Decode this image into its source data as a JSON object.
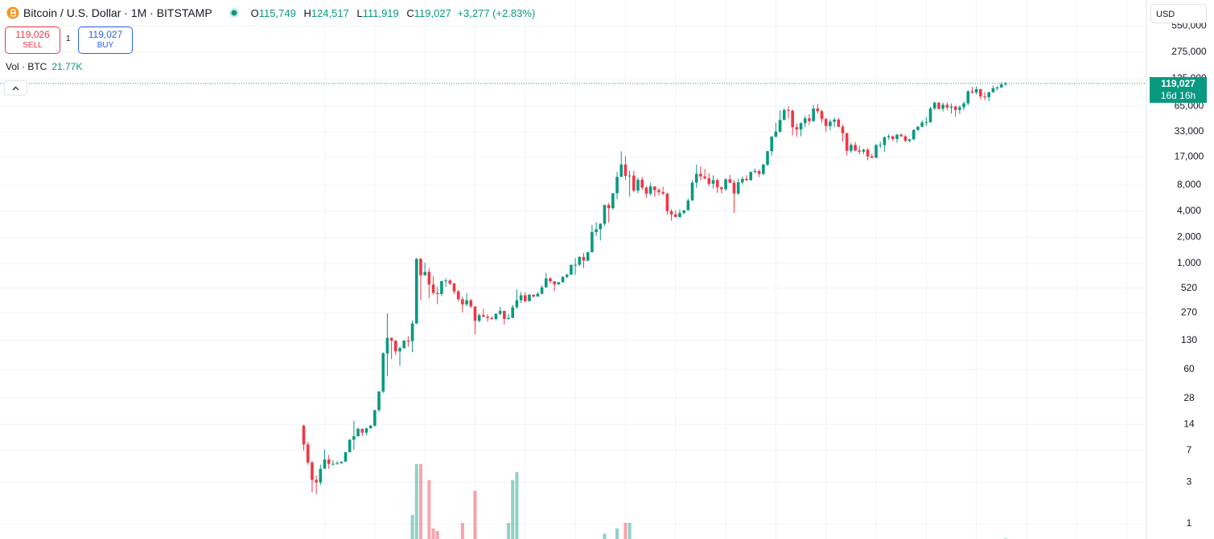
{
  "header": {
    "symbol": "Bitcoin / U.S. Dollar · 1M · BITSTAMP",
    "ohlc": [
      {
        "key": "O",
        "value": "115,749"
      },
      {
        "key": "H",
        "value": "124,517"
      },
      {
        "key": "L",
        "value": "111,919"
      },
      {
        "key": "C",
        "value": "119,027"
      }
    ],
    "change": "+3,277 (+2.83%)",
    "sell": {
      "price": "119,026",
      "label": "SELL"
    },
    "spread": "1",
    "buy": {
      "price": "119,027",
      "label": "BUY"
    },
    "volume": {
      "label": "Vol · BTC",
      "value": "21.77K"
    },
    "currency": "USD"
  },
  "chart_data": {
    "type": "candlestick",
    "log": true,
    "grid": true,
    "up_color": "#089981",
    "down_color": "#f23645",
    "ylim": [
      0.667,
      1090000
    ],
    "yticks": [
      {
        "value": 550000,
        "label": "550,000"
      },
      {
        "value": 275000,
        "label": "275,000"
      },
      {
        "value": 135000,
        "label": "135,000"
      },
      {
        "value": 65000,
        "label": "65,000"
      },
      {
        "value": 33000,
        "label": "33,000"
      },
      {
        "value": 17000,
        "label": "17,000"
      },
      {
        "value": 8000,
        "label": "8,000"
      },
      {
        "value": 4000,
        "label": "4,000"
      },
      {
        "value": 2000,
        "label": "2,000"
      },
      {
        "value": 1000,
        "label": "1,000"
      },
      520,
      270,
      130,
      60,
      28,
      14,
      7,
      3,
      1
    ],
    "last_price": {
      "value": 119027,
      "label": "119,027"
    },
    "countdown": "16d 16h",
    "candles": [
      [
        13.5,
        13.9,
        7.0,
        8.2
      ],
      [
        8.2,
        8.8,
        4.8,
        5.1
      ],
      [
        5.1,
        5.3,
        2.3,
        3.2
      ],
      [
        3.2,
        3.6,
        2.2,
        3.0
      ],
      [
        3.0,
        4.8,
        2.8,
        4.3
      ],
      [
        4.3,
        7.2,
        4.3,
        5.5
      ],
      [
        5.5,
        6.2,
        4.3,
        4.9
      ],
      [
        4.9,
        5.4,
        4.7,
        4.9
      ],
      [
        4.9,
        5.3,
        4.8,
        5.0
      ],
      [
        5.0,
        5.2,
        4.9,
        5.2
      ],
      [
        5.2,
        6.7,
        5.2,
        6.7
      ],
      [
        6.7,
        9.4,
        6.6,
        9.3
      ],
      [
        9.3,
        15.4,
        7.1,
        10.2
      ],
      [
        10.2,
        12.9,
        10.1,
        12.4
      ],
      [
        12.4,
        12.5,
        10.2,
        11.2
      ],
      [
        11.2,
        12.8,
        10.5,
        12.6
      ],
      [
        12.6,
        13.8,
        12.5,
        13.5
      ],
      [
        13.5,
        20.5,
        13.2,
        20.4
      ],
      [
        20.4,
        33.8,
        19.5,
        33.4
      ],
      [
        33.4,
        95,
        32,
        92
      ],
      [
        92,
        266,
        50,
        139
      ],
      [
        139,
        140,
        79,
        129
      ],
      [
        129,
        130,
        88,
        97
      ],
      [
        97,
        110,
        66,
        106
      ],
      [
        106,
        130,
        103,
        129
      ],
      [
        129,
        145,
        110,
        127
      ],
      [
        127,
        220,
        95,
        204
      ],
      [
        204,
        1163,
        200,
        1129
      ],
      [
        1129,
        1163,
        379,
        732
      ],
      [
        732,
        1022,
        722,
        800
      ],
      [
        800,
        880,
        400,
        573
      ],
      [
        573,
        711,
        436,
        458
      ],
      [
        458,
        540,
        340,
        444
      ],
      [
        444,
        630,
        420,
        628
      ],
      [
        628,
        682,
        540,
        636
      ],
      [
        636,
        660,
        565,
        586
      ],
      [
        586,
        600,
        445,
        477
      ],
      [
        477,
        496,
        366,
        387
      ],
      [
        387,
        415,
        275,
        338
      ],
      [
        338,
        455,
        320,
        377
      ],
      [
        377,
        390,
        305,
        320
      ],
      [
        320,
        320,
        152,
        218
      ],
      [
        218,
        265,
        210,
        254
      ],
      [
        254,
        300,
        240,
        244
      ],
      [
        244,
        262,
        214,
        236
      ],
      [
        236,
        247,
        225,
        230
      ],
      [
        230,
        267,
        221,
        263
      ],
      [
        263,
        315,
        253,
        284
      ],
      [
        284,
        285,
        198,
        230
      ],
      [
        230,
        262,
        224,
        236
      ],
      [
        236,
        334,
        235,
        313
      ],
      [
        313,
        502,
        300,
        377
      ],
      [
        377,
        470,
        350,
        430
      ],
      [
        430,
        467,
        355,
        368
      ],
      [
        368,
        448,
        365,
        437
      ],
      [
        437,
        439,
        405,
        416
      ],
      [
        416,
        469,
        414,
        448
      ],
      [
        448,
        560,
        440,
        531
      ],
      [
        531,
        779,
        525,
        673
      ],
      [
        673,
        703,
        590,
        624
      ],
      [
        624,
        625,
        480,
        574
      ],
      [
        574,
        615,
        570,
        608
      ],
      [
        608,
        715,
        603,
        700
      ],
      [
        700,
        760,
        681,
        744
      ],
      [
        744,
        973,
        738,
        964
      ],
      [
        964,
        1150,
        740,
        968
      ],
      [
        968,
        1210,
        940,
        1190
      ],
      [
        1190,
        1320,
        890,
        1080
      ],
      [
        1080,
        1360,
        1060,
        1350
      ],
      [
        1350,
        2790,
        1340,
        2300
      ],
      [
        2300,
        3000,
        2080,
        2480
      ],
      [
        2480,
        2930,
        1840,
        2870
      ],
      [
        2870,
        4750,
        2700,
        4730
      ],
      [
        4730,
        4980,
        2970,
        4340
      ],
      [
        4340,
        6470,
        4170,
        6450
      ],
      [
        6450,
        11400,
        5500,
        9950
      ],
      [
        9950,
        19670,
        10900,
        13850
      ],
      [
        13850,
        17170,
        9200,
        10230
      ],
      [
        10230,
        11780,
        5920,
        10330
      ],
      [
        10330,
        11700,
        6600,
        6930
      ],
      [
        6930,
        9750,
        6430,
        9240
      ],
      [
        9240,
        9990,
        7030,
        7500
      ],
      [
        7500,
        7760,
        5750,
        6390
      ],
      [
        6390,
        8500,
        6070,
        7730
      ],
      [
        7730,
        7750,
        5880,
        7030
      ],
      [
        7030,
        7410,
        6100,
        6630
      ],
      [
        6630,
        7680,
        6200,
        6370
      ],
      [
        6370,
        6560,
        3650,
        4020
      ],
      [
        4020,
        4230,
        3120,
        3690
      ],
      [
        3690,
        4070,
        3400,
        3440
      ],
      [
        3440,
        4200,
        3380,
        3820
      ],
      [
        3820,
        4130,
        3700,
        4100
      ],
      [
        4100,
        5610,
        4080,
        5320
      ],
      [
        5320,
        9090,
        5320,
        8560
      ],
      [
        8560,
        13880,
        7460,
        10820
      ],
      [
        10820,
        13200,
        9070,
        10080
      ],
      [
        10080,
        12330,
        9350,
        9590
      ],
      [
        9590,
        10940,
        7730,
        8300
      ],
      [
        8300,
        10370,
        7300,
        9150
      ],
      [
        9150,
        9530,
        6520,
        7550
      ],
      [
        7550,
        7750,
        6430,
        7190
      ],
      [
        7190,
        9580,
        6860,
        9350
      ],
      [
        9350,
        10500,
        8450,
        8540
      ],
      [
        8540,
        9190,
        3850,
        6410
      ],
      [
        6410,
        9470,
        6160,
        8620
      ],
      [
        8620,
        10070,
        8120,
        9450
      ],
      [
        9450,
        10390,
        8920,
        9140
      ],
      [
        9140,
        11450,
        8990,
        11350
      ],
      [
        11350,
        12470,
        10940,
        11660
      ],
      [
        11660,
        12050,
        9880,
        10780
      ],
      [
        10780,
        14100,
        10420,
        13800
      ],
      [
        13800,
        19860,
        13220,
        19700
      ],
      [
        19700,
        29300,
        17600,
        28990
      ],
      [
        28990,
        41950,
        28130,
        33110
      ],
      [
        33110,
        58350,
        32300,
        45140
      ],
      [
        45140,
        61780,
        44950,
        58790
      ],
      [
        58790,
        64900,
        47050,
        57720
      ],
      [
        57720,
        59560,
        30000,
        37300
      ],
      [
        37300,
        41330,
        28800,
        35040
      ],
      [
        35040,
        42320,
        29300,
        41490
      ],
      [
        41490,
        50500,
        37330,
        47100
      ],
      [
        47100,
        52920,
        39600,
        43820
      ],
      [
        43820,
        67000,
        43290,
        61300
      ],
      [
        61300,
        69000,
        53260,
        57000
      ],
      [
        57000,
        59100,
        42000,
        46210
      ],
      [
        46210,
        47990,
        32930,
        38470
      ],
      [
        38470,
        45800,
        34320,
        43160
      ],
      [
        43160,
        48190,
        37160,
        45540
      ],
      [
        45540,
        47440,
        37700,
        37710
      ],
      [
        37710,
        39800,
        25400,
        31800
      ],
      [
        31800,
        31990,
        17600,
        19930
      ],
      [
        19930,
        24660,
        18780,
        23300
      ],
      [
        23300,
        25200,
        19550,
        20050
      ],
      [
        20050,
        22800,
        18150,
        19420
      ],
      [
        19420,
        21080,
        18190,
        20490
      ],
      [
        20490,
        21480,
        15480,
        17170
      ],
      [
        17170,
        18400,
        16280,
        16540
      ],
      [
        16540,
        23960,
        16500,
        23130
      ],
      [
        23130,
        25250,
        21380,
        23150
      ],
      [
        23150,
        29200,
        19550,
        28460
      ],
      [
        28460,
        31000,
        26940,
        29250
      ],
      [
        29250,
        29820,
        25810,
        27220
      ],
      [
        27220,
        31450,
        24760,
        30470
      ],
      [
        30470,
        31800,
        28860,
        29230
      ],
      [
        29230,
        30220,
        25160,
        25940
      ],
      [
        25940,
        27480,
        24900,
        26960
      ],
      [
        26960,
        35200,
        26540,
        34650
      ],
      [
        34650,
        38420,
        34100,
        37720
      ],
      [
        37720,
        44730,
        37600,
        42270
      ],
      [
        42270,
        48970,
        38500,
        42580
      ],
      [
        42580,
        63900,
        41900,
        61180
      ],
      [
        61180,
        73800,
        59000,
        71300
      ],
      [
        71300,
        72750,
        59600,
        60670
      ],
      [
        60670,
        71950,
        56550,
        67520
      ],
      [
        67520,
        72000,
        58400,
        62720
      ],
      [
        62720,
        70030,
        53500,
        64620
      ],
      [
        64620,
        65600,
        49100,
        58970
      ],
      [
        58970,
        66500,
        52550,
        63330
      ],
      [
        63330,
        73600,
        58900,
        70220
      ],
      [
        70220,
        99800,
        66800,
        96410
      ],
      [
        96410,
        108300,
        90500,
        93430
      ],
      [
        93430,
        109350,
        89160,
        102400
      ],
      [
        102400,
        102750,
        78200,
        84350
      ],
      [
        84350,
        95000,
        76600,
        82530
      ],
      [
        82530,
        95750,
        74400,
        94200
      ],
      [
        94200,
        111900,
        93400,
        104600
      ],
      [
        104600,
        110500,
        98200,
        107140
      ],
      [
        107140,
        123200,
        105300,
        115749
      ],
      [
        115749,
        124517,
        111919,
        119027
      ]
    ],
    "volume": [
      null,
      null,
      null,
      null,
      null,
      null,
      null,
      null,
      null,
      null,
      null,
      null,
      null,
      null,
      null,
      null,
      null,
      null,
      null,
      null,
      null,
      null,
      null,
      null,
      null,
      null,
      900000,
      2800000,
      2800000,
      null,
      2200000,
      400000,
      300000,
      null,
      null,
      null,
      null,
      null,
      600000,
      null,
      null,
      1800000,
      null,
      null,
      null,
      null,
      null,
      null,
      null,
      600000,
      2200000,
      2500000,
      null,
      null,
      null,
      null,
      null,
      null,
      null,
      null,
      null,
      null,
      null,
      null,
      null,
      null,
      null,
      null,
      null,
      null,
      null,
      null,
      200000,
      null,
      null,
      400000,
      null,
      600000,
      600000,
      null,
      null,
      null,
      null,
      null,
      null,
      null,
      null,
      null,
      null,
      null,
      null,
      null,
      null,
      null,
      null,
      null,
      null,
      null,
      null,
      null,
      null,
      null,
      null,
      null,
      null,
      null,
      null,
      null,
      null,
      null,
      null,
      null,
      null,
      null,
      null,
      null,
      null,
      null,
      null,
      null,
      null,
      null,
      null,
      null,
      null,
      null,
      null,
      null,
      null,
      null,
      null,
      null,
      null,
      null,
      null,
      null,
      null,
      null,
      null,
      null,
      null,
      null,
      null,
      null,
      null,
      null,
      null,
      null,
      null,
      null,
      null,
      null,
      null,
      null,
      null,
      null,
      null,
      null,
      null,
      null,
      null,
      null,
      null,
      null,
      null,
      null,
      null,
      null,
      21770
    ]
  }
}
